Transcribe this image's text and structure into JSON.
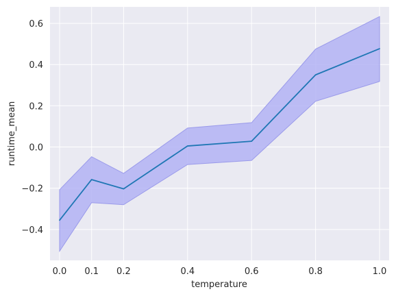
{
  "chart_data": {
    "type": "line",
    "title": "",
    "xlabel": "temperature",
    "ylabel": "runtime_mean",
    "grid": true,
    "x": [
      0.0,
      0.1,
      0.2,
      0.4,
      0.6,
      0.8,
      1.0
    ],
    "x_tick_labels": [
      "0.0",
      "0.1",
      "0.2",
      "0.4",
      "0.6",
      "0.8",
      "1.0"
    ],
    "y_ticks": [
      -0.4,
      -0.2,
      0.0,
      0.2,
      0.4,
      0.6
    ],
    "y_tick_labels": [
      "−0.4",
      "−0.2",
      "0.0",
      "0.2",
      "0.4",
      "0.6"
    ],
    "ylim": [
      -0.55,
      0.68
    ],
    "series": [
      {
        "values": [
          -0.355,
          -0.158,
          -0.203,
          0.005,
          0.028,
          0.35,
          0.477
        ],
        "lower": [
          -0.505,
          -0.27,
          -0.28,
          -0.085,
          -0.065,
          0.222,
          0.318
        ],
        "upper": [
          -0.207,
          -0.047,
          -0.128,
          0.092,
          0.118,
          0.475,
          0.633
        ],
        "line_color": "#1f77b4",
        "band_fill": "#b3b3f5",
        "band_edge": "#9a9aea"
      }
    ],
    "colors": {
      "plot_background": "#eaeaf2",
      "grid": "#ffffff"
    }
  }
}
